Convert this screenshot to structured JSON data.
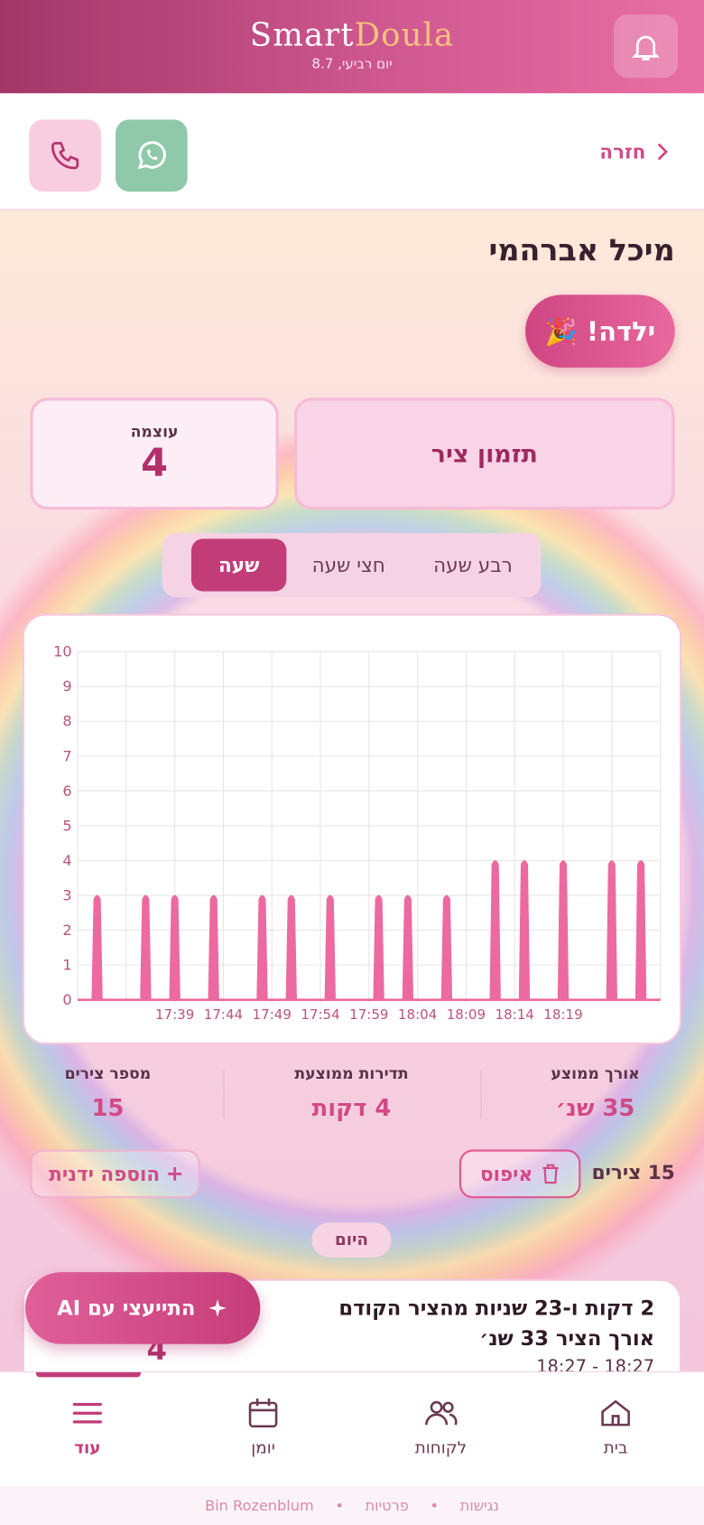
{
  "header": {
    "brand_part1": "Smart",
    "brand_part2": "Doula",
    "date": "יום רביעי, 8.7"
  },
  "nav_back": "חזרה",
  "client_name": "מיכל אברהמי",
  "badge": "ילדה! 🎉",
  "timer_button": "תזמון ציר",
  "strength": {
    "label": "עוצמה",
    "value": 4
  },
  "tabs": [
    "רבע שעה",
    "חצי שעה",
    "שעה"
  ],
  "chart_data": {
    "type": "line",
    "x": [
      "17:31",
      "17:36",
      "17:39",
      "17:43",
      "17:48",
      "17:51",
      "17:55",
      "18:00",
      "18:03",
      "18:07",
      "18:12",
      "18:15",
      "18:19",
      "18:24",
      "18:27"
    ],
    "series": [
      {
        "color": "#ec6aa0",
        "values": [
          3,
          3,
          3,
          3,
          3,
          3,
          3,
          3,
          3,
          3,
          4,
          4,
          4,
          4,
          4
        ]
      }
    ],
    "xlim": [
      "17:29",
      "18:29"
    ],
    "xticks": [
      "17:39",
      "17:44",
      "17:49",
      "17:54",
      "17:59",
      "18:04",
      "18:09",
      "18:14",
      "18:19"
    ],
    "ylim": [
      0,
      10
    ],
    "yticks": [
      0,
      1,
      2,
      3,
      4,
      5,
      6,
      7,
      8,
      9,
      10
    ],
    "grid": true
  },
  "stats": [
    {
      "label": "אורך ממוצע",
      "value": "35 שנ׳"
    },
    {
      "label": "תדירות ממוצעת",
      "value": "4 דקות"
    },
    {
      "label": "מספר צירים",
      "value": 15
    }
  ],
  "count_label": "15 צירים",
  "reset": "איפוס",
  "manual_add": "הוספה ידנית",
  "day_label": "היום",
  "entry": {
    "line1": "2 דקות ו-23 שניות מהציר הקודם",
    "line2": "אורך הציר 33 שנ׳",
    "time": "18:27 - 18:27",
    "strength": 4
  },
  "ai_button": "התייעצי עם AI",
  "bottom_nav": [
    "בית",
    "לקוחות",
    "יומן",
    "עוד"
  ],
  "footer": [
    "נגישות",
    "פרטיות",
    "Bin Rozenblum"
  ]
}
